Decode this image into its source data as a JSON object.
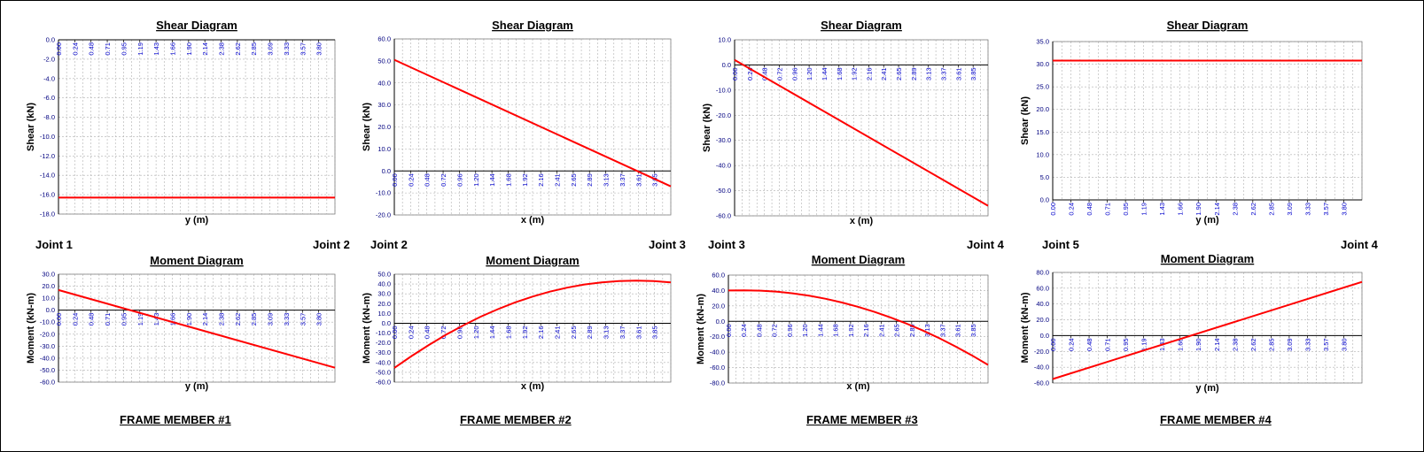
{
  "colors": {
    "series": "#ff0000",
    "grid": "#b0b0b0",
    "tick_label": "#0000cc"
  },
  "joints": [
    {
      "left": "Joint 1",
      "right": "Joint 2"
    },
    {
      "left": "Joint 2",
      "right": "Joint 3"
    },
    {
      "left": "Joint 3",
      "right": "Joint 4"
    },
    {
      "left": "Joint 5",
      "right": "Joint 4"
    }
  ],
  "members": [
    "FRAME MEMBER #1",
    "FRAME MEMBER #2",
    "FRAME MEMBER #3",
    "FRAME MEMBER #4"
  ],
  "chart_data": [
    {
      "type": "line",
      "title": "Shear Diagram",
      "xlabel": "y (m)",
      "ylabel": "Shear (kN)",
      "xlim": [
        0,
        4.0
      ],
      "ylim": [
        -18,
        0
      ],
      "yticks": [
        "-18.0",
        "-16.0",
        "-14.0",
        "-12.0",
        "-10.0",
        "-8.0",
        "-6.0",
        "-4.0",
        "-2.0",
        "0.0"
      ],
      "xticks": [
        "0.00",
        "0.24",
        "0.48",
        "0.71",
        "0.95",
        "1.19",
        "1.43",
        "1.66",
        "1.90",
        "2.14",
        "2.38",
        "2.62",
        "2.85",
        "3.09",
        "3.33",
        "3.57",
        "3.80"
      ],
      "xtick_pos": "axis",
      "grid": true,
      "x": [
        0,
        4.0
      ],
      "y": [
        -16.3,
        -16.3
      ]
    },
    {
      "type": "line",
      "title": "Shear Diagram",
      "xlabel": "x (m)",
      "ylabel": "Shear (kN)",
      "xlim": [
        0,
        4.0
      ],
      "ylim": [
        -20,
        60
      ],
      "yticks": [
        "-20.0",
        "-10.0",
        "0.0",
        "10.0",
        "20.0",
        "30.0",
        "40.0",
        "50.0",
        "60.0"
      ],
      "xticks": [
        "0.00",
        "0.24",
        "0.48",
        "0.72",
        "0.96",
        "1.20",
        "1.44",
        "1.68",
        "1.92",
        "2.16",
        "2.41",
        "2.65",
        "2.89",
        "3.13",
        "3.37",
        "3.61",
        "3.85"
      ],
      "xtick_pos": "axis",
      "grid": true,
      "x": [
        0,
        4.0
      ],
      "y": [
        50.5,
        -7
      ]
    },
    {
      "type": "line",
      "title": "Shear Diagram",
      "xlabel": "x (m)",
      "ylabel": "Shear (kN)",
      "xlim": [
        0,
        4.0
      ],
      "ylim": [
        -60,
        10
      ],
      "yticks": [
        "-60.0",
        "-50.0",
        "-40.0",
        "-30.0",
        "-20.0",
        "-10.0",
        "0.0",
        "10.0"
      ],
      "xticks": [
        "0.00",
        "0.24",
        "0.48",
        "0.72",
        "0.96",
        "1.20",
        "1.44",
        "1.68",
        "1.92",
        "2.16",
        "2.41",
        "2.65",
        "2.89",
        "3.13",
        "3.37",
        "3.61",
        "3.85"
      ],
      "xtick_pos": "axis",
      "grid": true,
      "x": [
        0,
        4.0
      ],
      "y": [
        2,
        -56
      ]
    },
    {
      "type": "line",
      "title": "Shear Diagram",
      "xlabel": "y (m)",
      "ylabel": "Shear (kN)",
      "xlim": [
        0,
        4.0
      ],
      "ylim": [
        0,
        35
      ],
      "yticks": [
        "0.0",
        "5.0",
        "10.0",
        "15.0",
        "20.0",
        "25.0",
        "30.0",
        "35.0"
      ],
      "xticks": [
        "0.00",
        "0.24",
        "0.48",
        "0.71",
        "0.95",
        "1.19",
        "1.43",
        "1.66",
        "1.90",
        "2.14",
        "2.38",
        "2.62",
        "2.85",
        "3.09",
        "3.33",
        "3.57",
        "3.80"
      ],
      "xtick_pos": "axis",
      "grid": true,
      "x": [
        0,
        4.0
      ],
      "y": [
        30.8,
        30.8
      ]
    },
    {
      "type": "line",
      "title": "Moment Diagram",
      "xlabel": "y (m)",
      "ylabel": "Moment (kN-m)",
      "xlim": [
        0,
        4.0
      ],
      "ylim": [
        -60,
        30
      ],
      "yticks": [
        "-60.0",
        "-50.0",
        "-40.0",
        "-30.0",
        "-20.0",
        "-10.0",
        "0.0",
        "10.0",
        "20.0",
        "30.0"
      ],
      "xticks": [
        "0.00",
        "0.24",
        "0.48",
        "0.71",
        "0.95",
        "1.19",
        "1.43",
        "1.66",
        "1.90",
        "2.14",
        "2.38",
        "2.62",
        "2.85",
        "3.09",
        "3.33",
        "3.57",
        "3.80"
      ],
      "xtick_pos": "axis",
      "grid": true,
      "x": [
        0,
        4.0
      ],
      "y": [
        16.8,
        -48
      ]
    },
    {
      "type": "line",
      "title": "Moment Diagram",
      "xlabel": "x (m)",
      "ylabel": "Moment (kN-m)",
      "xlim": [
        0,
        4.0
      ],
      "ylim": [
        -60,
        50
      ],
      "yticks": [
        "-60.0",
        "-50.0",
        "-40.0",
        "-30.0",
        "-20.0",
        "-10.0",
        "0.0",
        "10.0",
        "20.0",
        "30.0",
        "40.0",
        "50.0"
      ],
      "xticks": [
        "0.00",
        "0.24",
        "0.48",
        "0.72",
        "0.96",
        "1.20",
        "1.44",
        "1.68",
        "1.92",
        "2.16",
        "2.41",
        "2.65",
        "2.89",
        "3.13",
        "3.37",
        "3.61",
        "3.85"
      ],
      "xtick_pos": "axis",
      "grid": true,
      "x": [
        0,
        0.25,
        0.5,
        0.75,
        1.0,
        1.25,
        1.5,
        1.75,
        2.0,
        2.25,
        2.5,
        2.75,
        3.0,
        3.25,
        3.5,
        3.75,
        4.0
      ],
      "y": [
        -45.5,
        -33.4,
        -22.1,
        -11.6,
        -2.0,
        6.7,
        14.4,
        21.3,
        27.2,
        32.2,
        36.3,
        39.5,
        41.7,
        43.1,
        43.5,
        43.1,
        41.7
      ]
    },
    {
      "type": "line",
      "title": "Moment Diagram",
      "xlabel": "x (m)",
      "ylabel": "Moment (kN-m)",
      "xlim": [
        0,
        4.0
      ],
      "ylim": [
        -80,
        60
      ],
      "yticks": [
        "-80.0",
        "-60.0",
        "-40.0",
        "-20.0",
        "0.0",
        "20.0",
        "40.0",
        "60.0"
      ],
      "xticks": [
        "0.00",
        "0.24",
        "0.48",
        "0.72",
        "0.96",
        "1.20",
        "1.44",
        "1.68",
        "1.92",
        "2.16",
        "2.41",
        "2.65",
        "2.89",
        "3.13",
        "3.37",
        "3.61",
        "3.85"
      ],
      "xtick_pos": "axis",
      "grid": true,
      "x": [
        0,
        0.25,
        0.5,
        0.75,
        1.0,
        1.25,
        1.5,
        1.75,
        2.0,
        2.25,
        2.5,
        2.75,
        3.0,
        3.25,
        3.5,
        3.75,
        4.0
      ],
      "y": [
        40.0,
        40.3,
        39.8,
        38.4,
        36.2,
        33.1,
        29.2,
        24.4,
        18.8,
        12.3,
        5.0,
        -3.1,
        -12.1,
        -21.9,
        -32.6,
        -44.1,
        -56.5
      ]
    },
    {
      "type": "line",
      "title": "Moment Diagram",
      "xlabel": "y (m)",
      "ylabel": "Moment (kN-m)",
      "xlim": [
        0,
        4.0
      ],
      "ylim": [
        -60,
        80
      ],
      "yticks": [
        "-60.0",
        "-40.0",
        "-20.0",
        "0.0",
        "20.0",
        "40.0",
        "60.0",
        "80.0"
      ],
      "xticks": [
        "0.00",
        "0.24",
        "0.48",
        "0.71",
        "0.95",
        "1.19",
        "1.43",
        "1.66",
        "1.90",
        "2.14",
        "2.38",
        "2.62",
        "2.85",
        "3.09",
        "3.33",
        "3.57",
        "3.80"
      ],
      "xtick_pos": "axis",
      "grid": true,
      "x": [
        0,
        4.0
      ],
      "y": [
        -55,
        68
      ]
    }
  ]
}
